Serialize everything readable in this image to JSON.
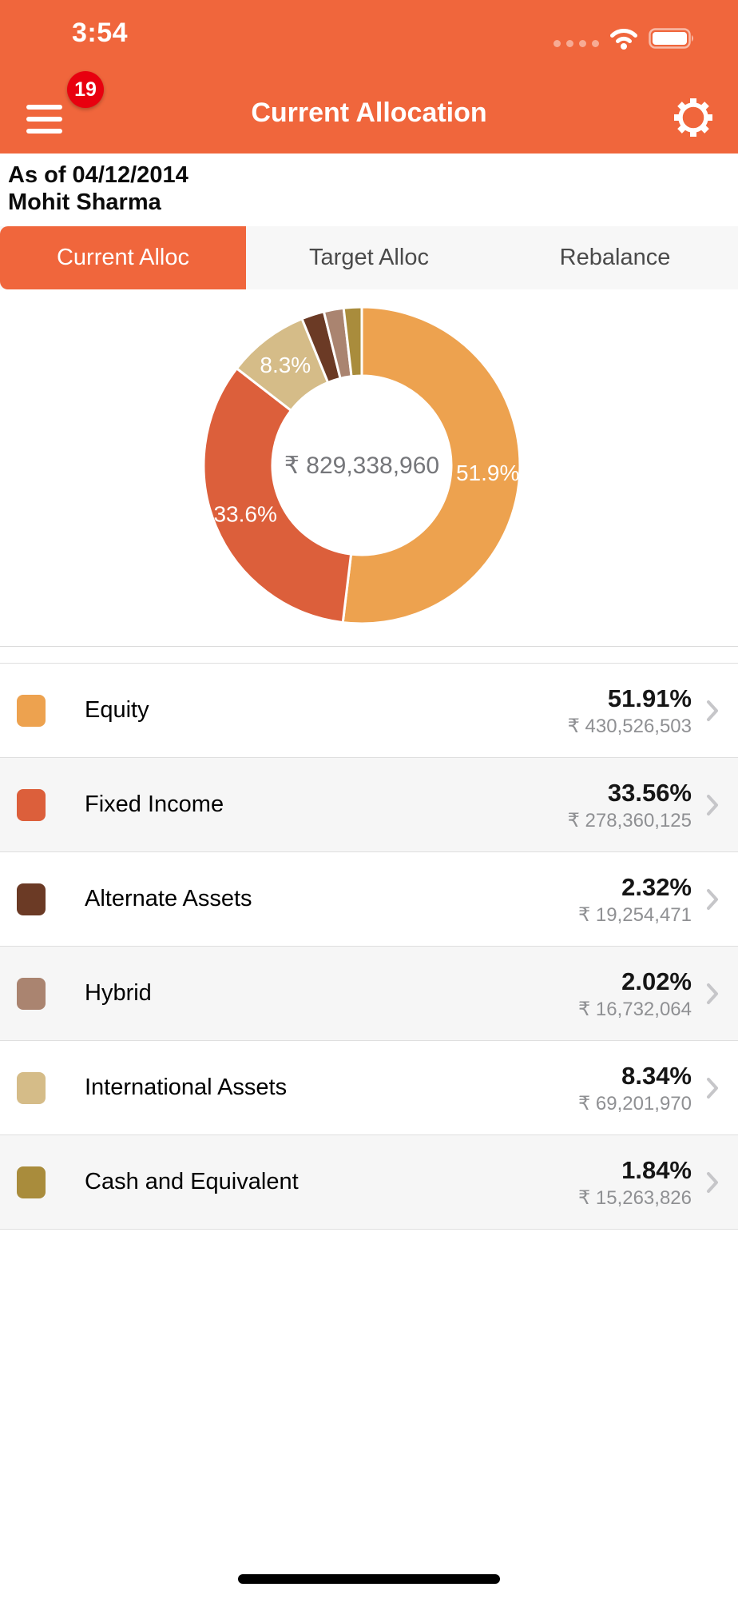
{
  "status_bar": {
    "time": "3:54",
    "icons": [
      "cellular-signal-dots",
      "wifi-icon",
      "battery-icon"
    ]
  },
  "nav": {
    "title": "Current Allocation",
    "menu_badge": "19",
    "icons": [
      "hamburger-icon",
      "gear-icon"
    ]
  },
  "header": {
    "as_of": "As of 04/12/2014",
    "client_name": "Mohit Sharma"
  },
  "tabs": [
    {
      "label": "Current Alloc",
      "active": true
    },
    {
      "label": "Target Alloc",
      "active": false
    },
    {
      "label": "Rebalance",
      "active": false
    }
  ],
  "chart_data": {
    "type": "pie",
    "title": "Current Allocation donut",
    "center_label": "₹ 829,338,960",
    "legend_position": "list-below",
    "segments": [
      {
        "name": "Equity",
        "value": 51.91,
        "label": "51.9%",
        "color": "#EDA24F"
      },
      {
        "name": "Fixed Income",
        "value": 33.56,
        "label": "33.6%",
        "color": "#DC5F3B"
      },
      {
        "name": "International Assets",
        "value": 8.34,
        "label": "8.3%",
        "color": "#D5BC88"
      },
      {
        "name": "Alternate Assets",
        "value": 2.32,
        "label": "",
        "color": "#6B3A25"
      },
      {
        "name": "Hybrid",
        "value": 2.02,
        "label": "",
        "color": "#AA8470"
      },
      {
        "name": "Cash and Equivalent",
        "value": 1.84,
        "label": "",
        "color": "#A98C3C"
      }
    ]
  },
  "rows": [
    {
      "name": "Equity",
      "percent": "51.91%",
      "amount": "₹ 430,526,503",
      "color": "#EDA24F"
    },
    {
      "name": "Fixed Income",
      "percent": "33.56%",
      "amount": "₹ 278,360,125",
      "color": "#DC5F3B"
    },
    {
      "name": "Alternate Assets",
      "percent": "2.32%",
      "amount": "₹ 19,254,471",
      "color": "#6B3A25"
    },
    {
      "name": "Hybrid",
      "percent": "2.02%",
      "amount": "₹ 16,732,064",
      "color": "#AA8470"
    },
    {
      "name": "International Assets",
      "percent": "8.34%",
      "amount": "₹ 69,201,970",
      "color": "#D5BC88"
    },
    {
      "name": "Cash and Equivalent",
      "percent": "1.84%",
      "amount": "₹ 15,263,826",
      "color": "#A98C3C"
    }
  ],
  "colors": {
    "accent": "#F0663C",
    "badge": "#E8000F",
    "row_alt_bg": "#F6F6F6",
    "separator": "#DFDFDF",
    "amount_text": "#8F9093",
    "center_text": "#75767A"
  }
}
